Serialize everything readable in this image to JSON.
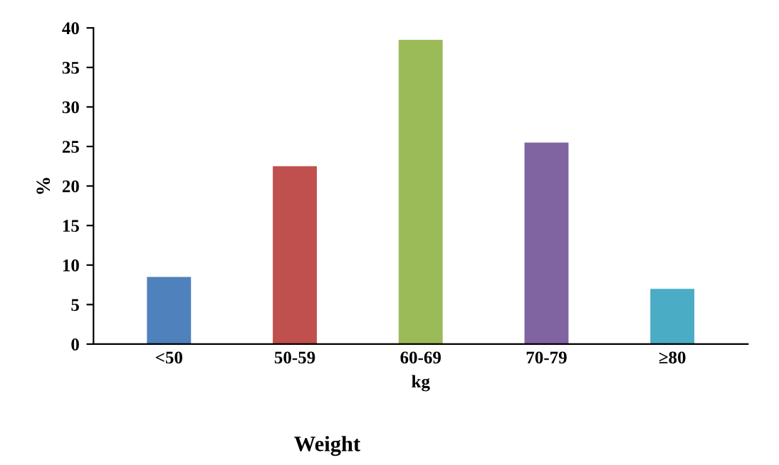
{
  "chart_data": {
    "type": "bar",
    "categories": [
      "<50",
      "50-59",
      "60-69",
      "70-79",
      "≥80"
    ],
    "values": [
      8.5,
      22.5,
      38.5,
      25.5,
      7
    ],
    "colors": [
      "#4f81bd",
      "#c0504d",
      "#9bbb59",
      "#8064a2",
      "#4bacc6"
    ],
    "xlabel": "kg",
    "ylabel": "%",
    "annotations": [
      "Weight"
    ],
    "ylim": [
      0,
      40
    ],
    "yticks": [
      0,
      5,
      10,
      15,
      20,
      25,
      30,
      35,
      40
    ],
    "grid": false
  }
}
